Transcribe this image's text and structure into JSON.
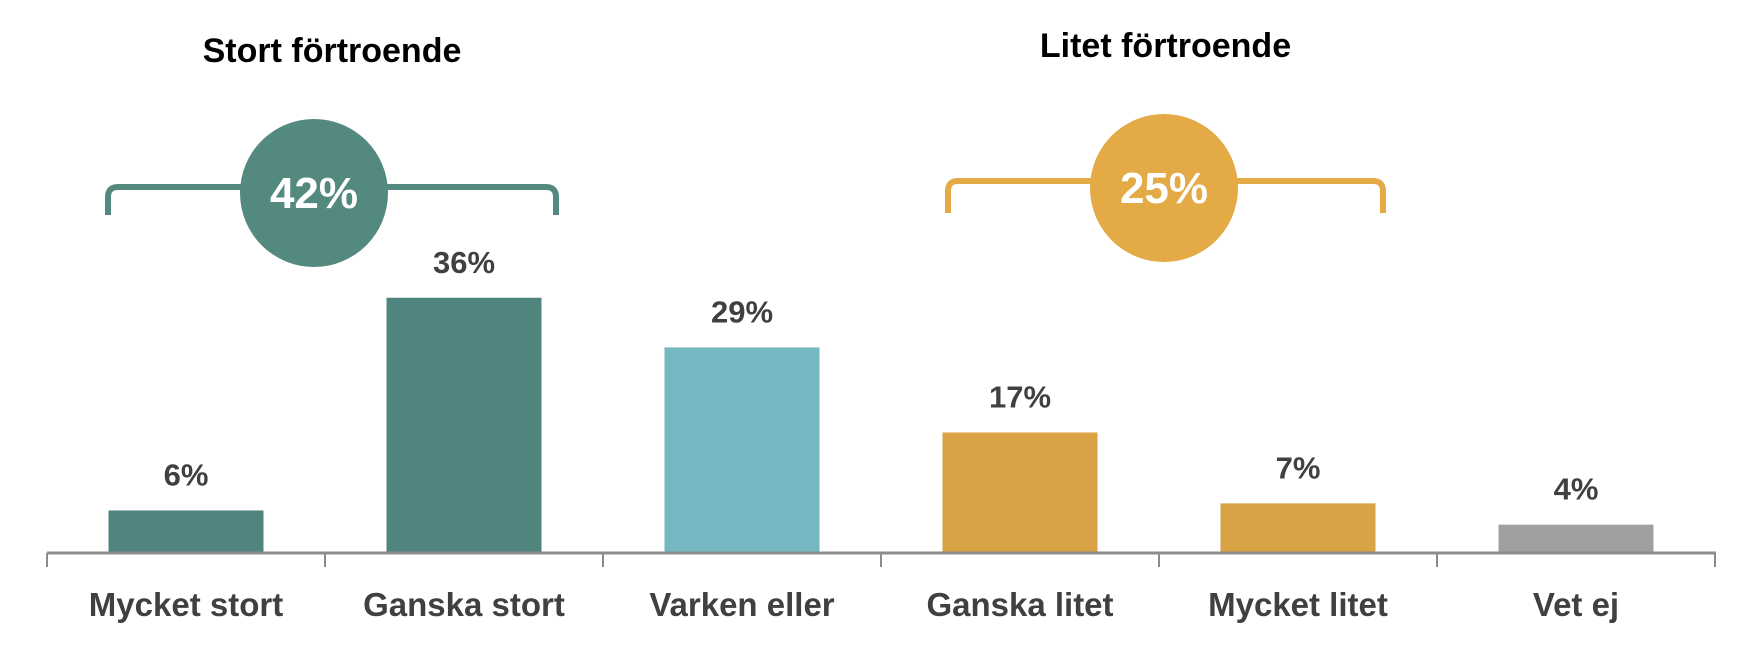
{
  "chart_data": {
    "type": "bar",
    "categories": [
      "Mycket stort",
      "Ganska stort",
      "Varken eller",
      "Ganska litet",
      "Mycket litet",
      "Vet ej"
    ],
    "values": [
      6,
      36,
      29,
      17,
      7,
      4
    ],
    "value_labels": [
      "6%",
      "36%",
      "29%",
      "17%",
      "7%",
      "4%"
    ],
    "bar_colors": [
      "#50847E",
      "#50847E",
      "#76B8C1",
      "#D9A244",
      "#D9A244",
      "#A0A0A0"
    ],
    "ylim": [
      0,
      40
    ],
    "grid": false,
    "groups": [
      {
        "title": "Stort förtroende",
        "total": "42%",
        "color": "#53897F",
        "categories": [
          0,
          1
        ]
      },
      {
        "title": "Litet förtroende",
        "total": "25%",
        "color": "#E3AA46",
        "categories": [
          3,
          4
        ]
      }
    ]
  }
}
